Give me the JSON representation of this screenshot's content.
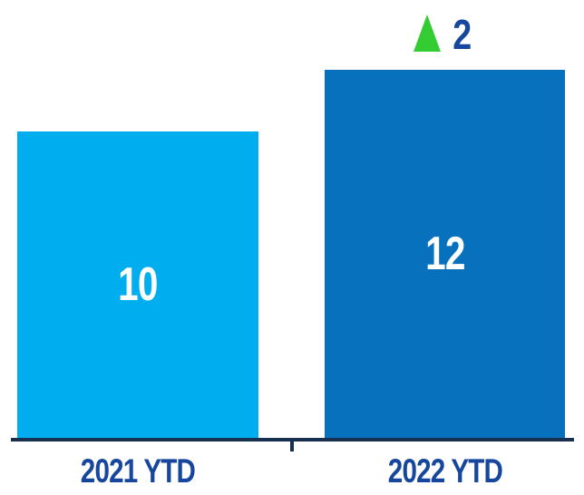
{
  "chart_data": {
    "type": "bar",
    "categories": [
      "2021 YTD",
      "2022 YTD"
    ],
    "values": [
      10,
      12
    ],
    "data_labels": [
      "10",
      "12"
    ],
    "title": "",
    "xlabel": "",
    "ylabel": "",
    "ylim": [
      0,
      12
    ],
    "grid": false,
    "legend": false,
    "bar_colors": [
      "#00AEEF",
      "#0771BE"
    ],
    "annotations": [
      {
        "text": "2",
        "symbol": "triangle-up",
        "meaning": "increase of 2 vs prior year",
        "position": "above 2022 YTD bar",
        "symbol_color": "#33CC33",
        "text_color": "#17479D"
      }
    ]
  },
  "indicator": {
    "label": "2",
    "icon": "triangle-up-icon",
    "color": "#33CC33"
  },
  "colors": {
    "bar_2021": "#00AEEF",
    "bar_2022": "#0771BE",
    "category_label": "#17479D",
    "axis_line": "#17304F",
    "value_label": "#FFFFFF",
    "indicator_green": "#33CC33"
  }
}
